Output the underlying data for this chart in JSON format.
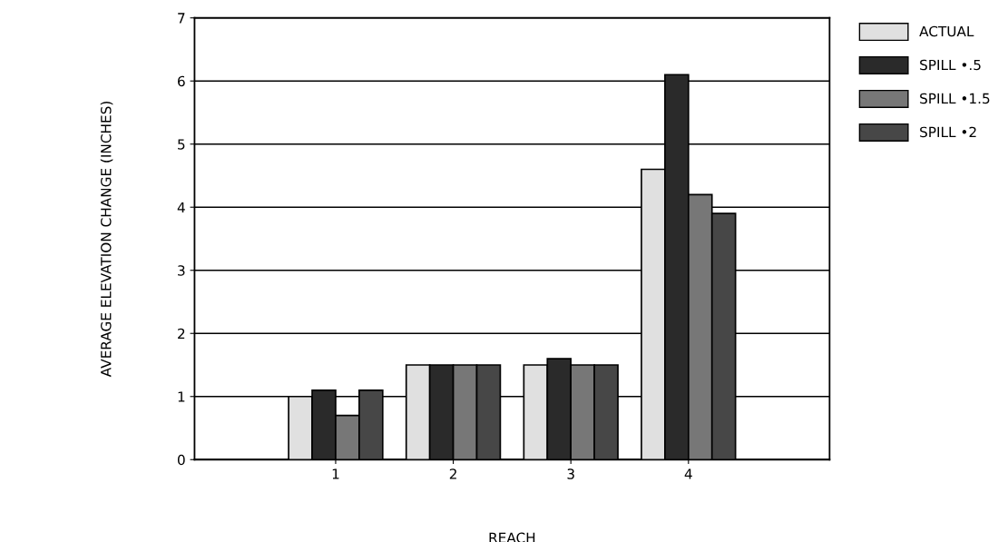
{
  "chart_data": {
    "type": "bar",
    "xlabel": "REACH",
    "ylabel": "AVERAGE ELEVATION CHANGE (INCHES)",
    "categories": [
      "1",
      "2",
      "3",
      "4"
    ],
    "series": [
      {
        "name": "ACTUAL",
        "color": "#e0e0e0",
        "values": [
          1.0,
          1.5,
          1.5,
          4.6
        ]
      },
      {
        "name": "SPILL •.5",
        "color": "#2a2a2a",
        "values": [
          1.1,
          1.5,
          1.6,
          6.1
        ]
      },
      {
        "name": "SPILL •1.5",
        "color": "#777777",
        "values": [
          0.7,
          1.5,
          1.5,
          4.2
        ]
      },
      {
        "name": "SPILL •2",
        "color": "#474747",
        "values": [
          1.1,
          1.5,
          1.5,
          3.9
        ]
      }
    ],
    "ylim": [
      0,
      7
    ],
    "yticks": [
      0,
      1,
      2,
      3,
      4,
      5,
      6,
      7
    ],
    "grid": "y",
    "legend": "top right"
  }
}
